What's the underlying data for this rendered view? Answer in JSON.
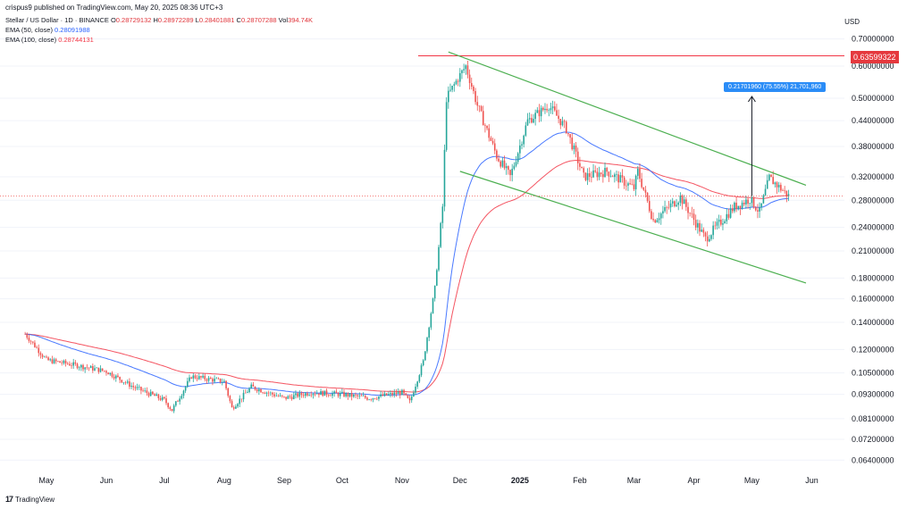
{
  "header": {
    "published": "crispus9 published on TradingView.com, May 20, 2025 08:36 UTC+3",
    "symbol": "Stellar / US Dollar · 1D · BINANCE",
    "ohlc": [
      {
        "k": "O",
        "v": "0.28729132"
      },
      {
        "k": "H",
        "v": "0.28972289"
      },
      {
        "k": "L",
        "v": "0.28401881"
      },
      {
        "k": "C",
        "v": "0.28707288"
      },
      {
        "k": "Vol",
        "v": "394.74K"
      }
    ],
    "ema50_label": "EMA (50, close)",
    "ema50_value": "0.28091988",
    "ema100_label": "EMA (100, close)",
    "ema100_value": "0.28744131",
    "currency": "USD",
    "brand": "TradingView"
  },
  "colors": {
    "up": "#26a69a",
    "down": "#ef5350",
    "ema50": "#2962ff",
    "ema100": "#f23645",
    "channel": "#4caf50",
    "resistance": "#f23645",
    "annotation": "#2a8cf7"
  },
  "chart_data": {
    "type": "candlestick",
    "scale": "log",
    "x_axis_labels": [
      "May",
      "Jun",
      "Jul",
      "Aug",
      "Sep",
      "Oct",
      "Nov",
      "Dec",
      "2025",
      "Feb",
      "Mar",
      "Apr",
      "May",
      "Jun"
    ],
    "y_axis_labels": [
      "0.70000000",
      "0.60000000",
      "0.50000000",
      "0.44000000",
      "0.38000000",
      "0.32000000",
      "0.28000000",
      "0.24000000",
      "0.21000000",
      "0.18000000",
      "0.16000000",
      "0.14000000",
      "0.12000000",
      "0.10500000",
      "0.09300000",
      "0.08100000",
      "0.07200000",
      "0.06400000"
    ],
    "ylim": [
      0.06,
      0.75
    ],
    "resistance_level": {
      "value": 0.63599322,
      "label": "0.63599322"
    },
    "measure_annotation": "0.21701960 (75.55%) 21,701,960",
    "last_price": 0.28707288,
    "series": [
      {
        "name": "Stellar / US Dollar",
        "kind": "ohlc"
      },
      {
        "name": "EMA (50, close)",
        "kind": "line"
      },
      {
        "name": "EMA (100, close)",
        "kind": "line"
      }
    ],
    "keypoints": [
      {
        "date": "2024-04-20",
        "close": 0.131
      },
      {
        "date": "2024-05-01",
        "close": 0.113
      },
      {
        "date": "2024-05-15",
        "close": 0.11
      },
      {
        "date": "2024-06-01",
        "close": 0.106
      },
      {
        "date": "2024-06-15",
        "close": 0.097
      },
      {
        "date": "2024-07-01",
        "close": 0.09
      },
      {
        "date": "2024-07-05",
        "close": 0.085
      },
      {
        "date": "2024-07-15",
        "close": 0.103
      },
      {
        "date": "2024-08-01",
        "close": 0.1
      },
      {
        "date": "2024-08-05",
        "close": 0.086
      },
      {
        "date": "2024-08-15",
        "close": 0.097
      },
      {
        "date": "2024-09-01",
        "close": 0.091
      },
      {
        "date": "2024-09-15",
        "close": 0.094
      },
      {
        "date": "2024-10-01",
        "close": 0.093
      },
      {
        "date": "2024-10-15",
        "close": 0.091
      },
      {
        "date": "2024-11-01",
        "close": 0.094
      },
      {
        "date": "2024-11-05",
        "close": 0.089
      },
      {
        "date": "2024-11-12",
        "close": 0.112
      },
      {
        "date": "2024-11-18",
        "close": 0.17
      },
      {
        "date": "2024-11-22",
        "close": 0.27
      },
      {
        "date": "2024-11-24",
        "close": 0.5
      },
      {
        "date": "2024-11-30",
        "close": 0.56
      },
      {
        "date": "2024-12-04",
        "close": 0.6
      },
      {
        "date": "2024-12-10",
        "close": 0.48
      },
      {
        "date": "2024-12-20",
        "close": 0.36
      },
      {
        "date": "2024-12-27",
        "close": 0.32
      },
      {
        "date": "2025-01-05",
        "close": 0.44
      },
      {
        "date": "2025-01-16",
        "close": 0.48
      },
      {
        "date": "2025-01-25",
        "close": 0.42
      },
      {
        "date": "2025-02-03",
        "close": 0.32
      },
      {
        "date": "2025-02-15",
        "close": 0.33
      },
      {
        "date": "2025-03-01",
        "close": 0.3
      },
      {
        "date": "2025-03-03",
        "close": 0.33
      },
      {
        "date": "2025-03-11",
        "close": 0.25
      },
      {
        "date": "2025-03-25",
        "close": 0.285
      },
      {
        "date": "2025-04-07",
        "close": 0.225
      },
      {
        "date": "2025-04-22",
        "close": 0.27
      },
      {
        "date": "2025-04-30",
        "close": 0.282
      },
      {
        "date": "2025-05-05",
        "close": 0.262
      },
      {
        "date": "2025-05-10",
        "close": 0.318
      },
      {
        "date": "2025-05-20",
        "close": 0.287
      }
    ],
    "channel_upper": [
      {
        "date": "2024-11-25",
        "price": 0.65
      },
      {
        "date": "2025-05-29",
        "price": 0.305
      }
    ],
    "channel_lower": [
      {
        "date": "2024-12-01",
        "price": 0.33
      },
      {
        "date": "2025-05-29",
        "price": 0.175
      }
    ]
  }
}
